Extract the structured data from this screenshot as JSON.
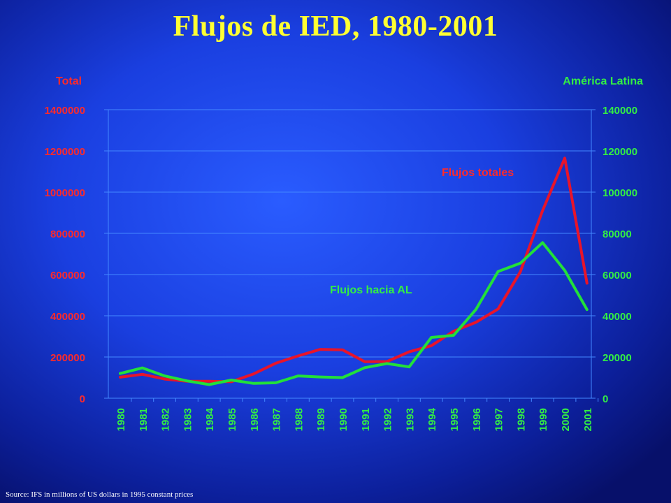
{
  "chart_data": {
    "type": "line",
    "title": "Flujos de IED, 1980-2001",
    "left_axis_label": "Total",
    "right_axis_label": "América Latina",
    "x": [
      "1980",
      "1981",
      "1982",
      "1983",
      "1984",
      "1985",
      "1986",
      "1987",
      "1988",
      "1989",
      "1990",
      "1991",
      "1992",
      "1993",
      "1994",
      "1995",
      "1996",
      "1997",
      "1998",
      "1999",
      "2000",
      "2001"
    ],
    "left_ylim": [
      0,
      1400000
    ],
    "left_ticks": [
      "0",
      "200000",
      "400000",
      "600000",
      "800000",
      "1000000",
      "1200000",
      "1400000"
    ],
    "right_ylim": [
      0,
      140000
    ],
    "right_ticks": [
      "0",
      "20000",
      "40000",
      "60000",
      "80000",
      "100000",
      "120000",
      "140000"
    ],
    "grid": true,
    "series": [
      {
        "name": "Flujos totales",
        "axis": "left",
        "color": "#e8142a",
        "values": [
          102000,
          116000,
          93000,
          82000,
          82000,
          80000,
          118000,
          170000,
          205000,
          237000,
          235000,
          177000,
          178000,
          225000,
          255000,
          325000,
          368000,
          433000,
          613000,
          910000,
          1165000,
          558000
        ]
      },
      {
        "name": "Flujos hacia AL",
        "axis": "right",
        "color": "#22e03a",
        "values": [
          12000,
          14700,
          10800,
          8400,
          6600,
          8800,
          7200,
          7500,
          10800,
          10300,
          10000,
          14800,
          16800,
          15200,
          29500,
          30500,
          43000,
          61500,
          65500,
          75500,
          62000,
          43000
        ]
      }
    ]
  },
  "source": "Source: IFS in millions of US dollars in 1995 constant prices",
  "colors": {
    "title": "#ffff33",
    "left_axis": "#ff2a2a",
    "right_axis": "#33ee44",
    "grid": "#4488ff"
  }
}
